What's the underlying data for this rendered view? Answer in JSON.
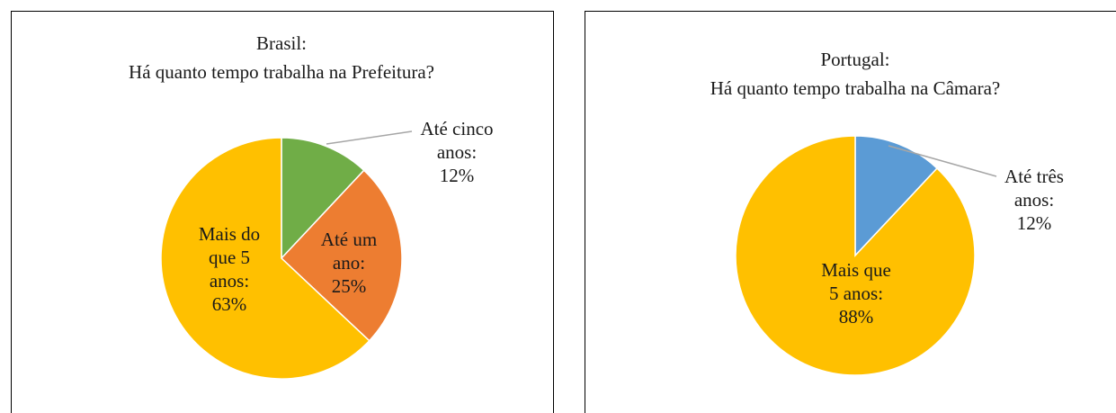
{
  "chart_data": [
    {
      "type": "pie",
      "title": [
        "Brasil:",
        "Há quanto tempo trabalha na Prefeitura?"
      ],
      "categories": [
        "Até cinco anos:",
        "Até um ano:",
        "Mais do que 5 anos:"
      ],
      "values": [
        12,
        25,
        63
      ],
      "value_labels": [
        "12%",
        "25%",
        "63%"
      ],
      "colors": [
        "#70ad47",
        "#ed7d31",
        "#ffc000"
      ]
    },
    {
      "type": "pie",
      "title": [
        "Portugal:",
        "Há quanto tempo trabalha na Câmara?"
      ],
      "categories": [
        "Até três anos:",
        "Mais que 5 anos:"
      ],
      "values": [
        12,
        88
      ],
      "value_labels": [
        "12%",
        "88%"
      ],
      "colors": [
        "#5b9bd5",
        "#ffc000"
      ]
    }
  ]
}
